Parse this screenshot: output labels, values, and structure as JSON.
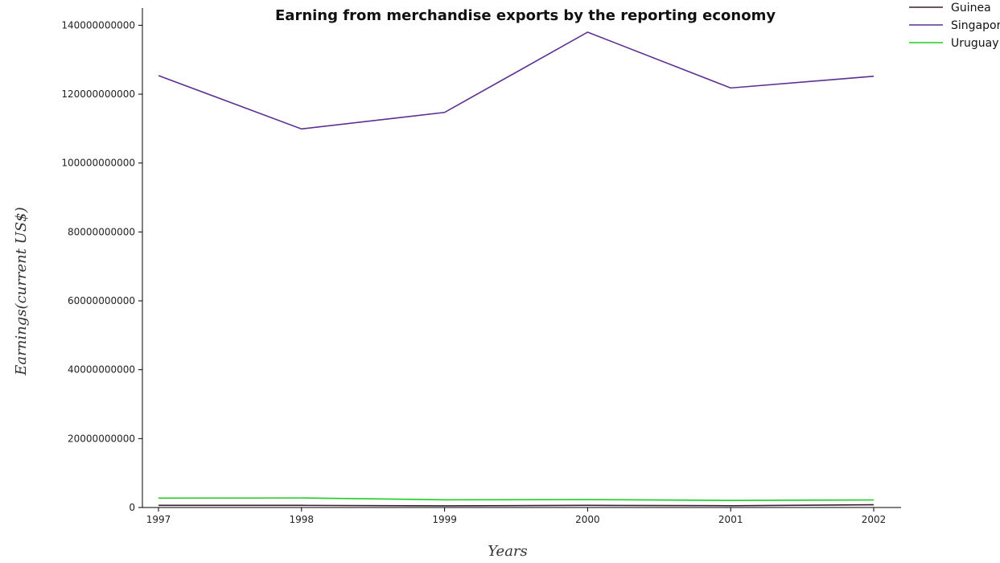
{
  "chart_data": {
    "type": "line",
    "title": "Earning from merchandise exports by the reporting economy",
    "xlabel": "Years",
    "ylabel": "Earnings(current US$)",
    "x": [
      "1997",
      "1998",
      "1999",
      "2000",
      "2001",
      "2002"
    ],
    "ylim": [
      0,
      145000000000
    ],
    "yticks": [
      0,
      20000000000,
      40000000000,
      60000000000,
      80000000000,
      100000000000,
      120000000000,
      140000000000
    ],
    "ytick_labels": [
      "0",
      "20000000000",
      "40000000000",
      "60000000000",
      "80000000000",
      "100000000000",
      "120000000000",
      "140000000000"
    ],
    "legend_position": "top-right",
    "grid": false,
    "series": [
      {
        "name": "Guinea",
        "color": "#3a1f2e",
        "values": [
          630000000,
          620000000,
          480000000,
          620000000,
          520000000,
          800000000
        ]
      },
      {
        "name": "Singapore",
        "color": "#5c2f91",
        "values": [
          125400000000,
          109900000000,
          114700000000,
          138000000000,
          121800000000,
          125200000000
        ]
      },
      {
        "name": "Uruguay",
        "color": "#22cc22",
        "values": [
          2730000000,
          2770000000,
          2240000000,
          2300000000,
          2060000000,
          2190000000
        ]
      }
    ]
  }
}
